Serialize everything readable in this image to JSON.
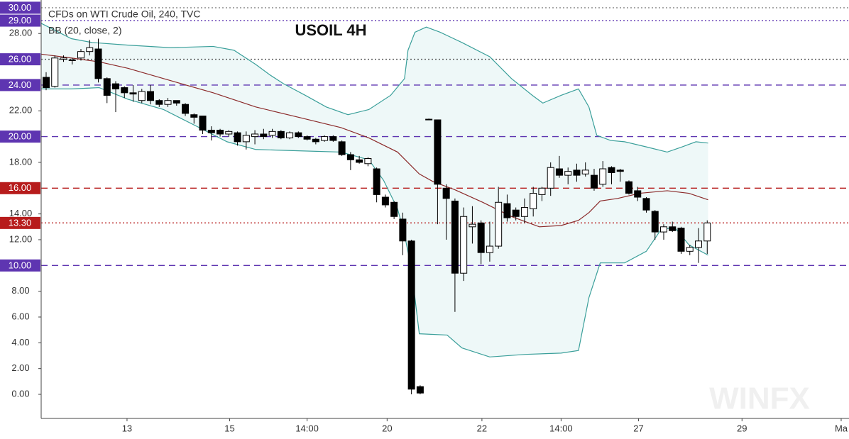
{
  "chart_data": {
    "type": "candlestick",
    "title": "USOIL 4H",
    "symbol_label": "CFDs on WTI Crude Oil, 240, TVC",
    "indicator_label": "BB (20, close, 2)",
    "watermark": "WINFX",
    "xlim": [
      -0.57,
      92.3
    ],
    "ylim": [
      -1.87,
      30.6
    ],
    "xticks": [
      {
        "value": 9.3,
        "label": "13"
      },
      {
        "value": 21.1,
        "label": "15"
      },
      {
        "value": 30.0,
        "label": "14:00"
      },
      {
        "value": 39.2,
        "label": "20"
      },
      {
        "value": 50.1,
        "label": "22"
      },
      {
        "value": 59.2,
        "label": "14:00"
      },
      {
        "value": 68.1,
        "label": "27"
      },
      {
        "value": 80.0,
        "label": "29"
      },
      {
        "value": 91.4,
        "label": "Ma"
      }
    ],
    "yticks": [
      {
        "value": 0,
        "label": "0.00"
      },
      {
        "value": 2,
        "label": "2.00"
      },
      {
        "value": 4,
        "label": "4.00"
      },
      {
        "value": 6,
        "label": "6.00"
      },
      {
        "value": 8,
        "label": "8.00"
      },
      {
        "value": 12,
        "label": "12.00"
      },
      {
        "value": 14,
        "label": "14.00"
      },
      {
        "value": 18,
        "label": "18.00"
      },
      {
        "value": 22,
        "label": "22.00"
      },
      {
        "value": 28,
        "label": "28.00"
      }
    ],
    "levels": [
      {
        "value": 30,
        "label": "30.00",
        "color": "#5e35b1",
        "line_color": "#888888",
        "dash": "2,3"
      },
      {
        "value": 29,
        "label": "29.00",
        "color": "#5e35b1",
        "line_color": "#5e35b1",
        "dash": "2,3"
      },
      {
        "value": 26,
        "label": "26.00",
        "color": "#5e35b1",
        "line_color": "#555555",
        "dash": "2,3"
      },
      {
        "value": 24,
        "label": "24.00",
        "color": "#5e35b1",
        "line_color": "#5e35b1",
        "dash": "9,6"
      },
      {
        "value": 20,
        "label": "20.00",
        "color": "#5e35b1",
        "line_color": "#5e35b1",
        "dash": "9,6"
      },
      {
        "value": 16,
        "label": "16.00",
        "color": "#b71c1c",
        "line_color": "#b71c1c",
        "dash": "9,6"
      },
      {
        "value": 13.3,
        "label": "13.30",
        "color": "#b71c1c",
        "line_color": "#b71c1c",
        "dash": "2,3"
      },
      {
        "value": 10,
        "label": "10.00",
        "color": "#5e35b1",
        "line_color": "#5e35b1",
        "dash": "9,6"
      }
    ],
    "up_color": "#ffffff",
    "down_color": "#000000",
    "candles": {
      "x": [
        0,
        1,
        2,
        3,
        4,
        5,
        6,
        7,
        8,
        9,
        10,
        11,
        12,
        13,
        14,
        15,
        16,
        17,
        18,
        19,
        20,
        21,
        22,
        23,
        24,
        25,
        26,
        27,
        28,
        29,
        30,
        31,
        32,
        33,
        34,
        35,
        36,
        37,
        38,
        39,
        40,
        41,
        42,
        43,
        44,
        45,
        46,
        47,
        48,
        49,
        50,
        51,
        52,
        53,
        54,
        55,
        56,
        57,
        58,
        59,
        60,
        61,
        62,
        63,
        64,
        65,
        66,
        67,
        68,
        69,
        70,
        71,
        72,
        73,
        74,
        75,
        76
      ],
      "open": [
        24.6,
        23.9,
        26.0,
        25.9,
        26.1,
        26.6,
        26.8,
        24.5,
        24.1,
        23.8,
        23.4,
        22.8,
        23.5,
        22.8,
        22.5,
        22.8,
        22.5,
        21.7,
        21.6,
        20.5,
        20.5,
        20.2,
        20.3,
        19.6,
        20.0,
        20.2,
        20.1,
        20.4,
        19.9,
        20.3,
        20.0,
        19.8,
        19.7,
        20.0,
        19.6,
        18.6,
        18.2,
        17.9,
        17.5,
        15.3,
        14.9,
        13.6,
        11.9,
        0.6,
        21.3,
        21.3,
        16.0,
        15.0,
        9.4,
        13.0,
        13.3,
        11.0,
        11.5,
        14.8,
        14.3,
        13.8,
        14.4,
        15.5,
        16.0,
        17.5,
        17.0,
        17.4,
        17.1,
        17.0,
        16.3,
        17.6,
        17.4,
        16.5,
        15.8,
        15.2,
        14.2,
        12.6,
        13.0,
        12.9,
        11.1,
        11.4,
        11.9
      ],
      "high": [
        25.0,
        26.3,
        26.3,
        26.1,
        26.8,
        27.5,
        27.6,
        24.6,
        24.3,
        23.9,
        24.0,
        23.7,
        24.0,
        22.9,
        23.0,
        22.8,
        22.6,
        21.8,
        21.6,
        20.8,
        20.6,
        20.5,
        20.4,
        20.4,
        20.5,
        20.6,
        20.6,
        20.5,
        20.4,
        20.4,
        20.1,
        19.9,
        20.1,
        20.1,
        19.7,
        18.8,
        18.5,
        18.4,
        17.6,
        15.5,
        15.0,
        14.1,
        12.0,
        0.7,
        21.4,
        21.3,
        16.3,
        15.2,
        14.5,
        14.6,
        13.5,
        13.4,
        16.1,
        15.5,
        14.5,
        15.2,
        16.1,
        16.1,
        18.0,
        18.5,
        17.6,
        17.9,
        18.0,
        17.5,
        18.1,
        17.7,
        17.5,
        16.6,
        16.1,
        15.3,
        14.3,
        13.2,
        13.4,
        13.0,
        11.6,
        12.9,
        13.5
      ],
      "low": [
        23.6,
        23.8,
        25.8,
        25.6,
        25.9,
        26.3,
        24.2,
        22.6,
        21.9,
        23.0,
        22.7,
        22.6,
        22.5,
        22.3,
        22.3,
        22.4,
        21.6,
        21.0,
        20.2,
        19.7,
        20.0,
        20.0,
        19.3,
        19.0,
        19.4,
        19.8,
        19.9,
        19.8,
        19.8,
        19.9,
        19.7,
        19.4,
        19.6,
        19.6,
        18.5,
        17.4,
        17.9,
        17.7,
        14.9,
        14.5,
        13.6,
        10.8,
        0.0,
        0.0,
        21.3,
        13.2,
        12.0,
        6.4,
        8.8,
        11.7,
        10.1,
        10.3,
        11.3,
        13.4,
        13.5,
        13.3,
        13.8,
        15.0,
        15.4,
        16.8,
        16.3,
        16.5,
        16.9,
        15.8,
        16.1,
        16.3,
        16.5,
        15.5,
        15.0,
        14.1,
        12.0,
        12.0,
        12.6,
        10.9,
        10.8,
        10.2,
        10.9
      ],
      "close": [
        23.8,
        26.1,
        26.1,
        25.95,
        26.6,
        26.9,
        24.5,
        23.2,
        23.7,
        23.4,
        23.3,
        23.5,
        22.8,
        22.5,
        22.8,
        22.6,
        21.8,
        21.5,
        20.5,
        20.3,
        20.2,
        20.4,
        19.6,
        20.1,
        20.2,
        20.0,
        20.4,
        19.9,
        20.3,
        20.0,
        19.8,
        19.6,
        20.0,
        19.7,
        18.6,
        18.2,
        18.0,
        18.3,
        15.5,
        14.7,
        13.8,
        11.9,
        0.4,
        0.1,
        21.35,
        16.3,
        15.2,
        9.4,
        13.8,
        13.2,
        11.0,
        11.5,
        14.9,
        13.7,
        13.8,
        14.5,
        15.6,
        16.0,
        17.6,
        17.0,
        17.3,
        17.0,
        17.4,
        16.0,
        17.5,
        17.2,
        17.3,
        15.6,
        15.3,
        14.3,
        12.6,
        13.0,
        12.7,
        11.1,
        11.4,
        11.9,
        13.3
      ]
    },
    "bollinger": {
      "band_color": "#3a9f9a",
      "middle_color": "#8b2a2a",
      "shade_color": "#eef8f8",
      "upper": {
        "x": [
          -0.6,
          2.9,
          5.3,
          9.4,
          14.3,
          19.2,
          21.6,
          24.1,
          25.7,
          27.3,
          29.8,
          32.2,
          34.7,
          37.1,
          39.6,
          41.2,
          41.6,
          42.4,
          43.7,
          45.3,
          47.8,
          51.0,
          53.5,
          55.9,
          57.1,
          59.2,
          61.2,
          62.4,
          63.3,
          64.9,
          66.5,
          69.0,
          71.4,
          73.1,
          74.7,
          76.1
        ],
        "values": [
          28.8,
          27.6,
          27.3,
          27.1,
          26.9,
          27.0,
          26.7,
          25.6,
          24.8,
          24.1,
          23.2,
          22.3,
          21.7,
          22.1,
          23.2,
          24.5,
          26.7,
          28.1,
          28.5,
          28.1,
          27.3,
          26.2,
          24.5,
          23.2,
          22.6,
          23.2,
          23.7,
          22.3,
          20.1,
          19.7,
          19.6,
          19.2,
          18.8,
          19.2,
          19.6,
          19.5
        ]
      },
      "middle": {
        "x": [
          -0.6,
          2.9,
          6.1,
          9.4,
          13.5,
          19.2,
          24.1,
          29.0,
          33.9,
          37.1,
          40.4,
          42.9,
          44.5,
          46.9,
          50.2,
          53.5,
          56.7,
          59.2,
          61.2,
          62.4,
          63.7,
          65.7,
          68.2,
          71.4,
          73.9,
          76.1
        ],
        "values": [
          26.4,
          26.1,
          25.8,
          25.3,
          24.5,
          23.4,
          22.3,
          21.5,
          20.7,
          19.9,
          18.8,
          17.1,
          16.5,
          15.9,
          14.9,
          13.8,
          13.0,
          13.1,
          13.5,
          14.1,
          15.0,
          15.2,
          15.6,
          15.8,
          15.6,
          15.1
        ]
      },
      "lower": {
        "x": [
          -0.6,
          2.9,
          6.1,
          9.4,
          13.5,
          17.6,
          20.8,
          24.1,
          29.0,
          33.9,
          37.1,
          38.8,
          40.4,
          41.2,
          42.0,
          42.9,
          46.1,
          47.8,
          51.0,
          55.1,
          59.2,
          61.2,
          62.4,
          63.7,
          66.5,
          69.0,
          70.6,
          72.2,
          73.9,
          76.1
        ],
        "values": [
          23.7,
          23.7,
          23.8,
          22.9,
          22.1,
          20.7,
          19.6,
          19.0,
          18.9,
          18.8,
          18.2,
          16.6,
          14.4,
          12.4,
          9.7,
          4.7,
          4.6,
          3.6,
          2.9,
          3.1,
          3.2,
          3.4,
          7.5,
          10.2,
          10.2,
          11.1,
          12.7,
          13.0,
          11.6,
          10.8
        ]
      }
    }
  }
}
